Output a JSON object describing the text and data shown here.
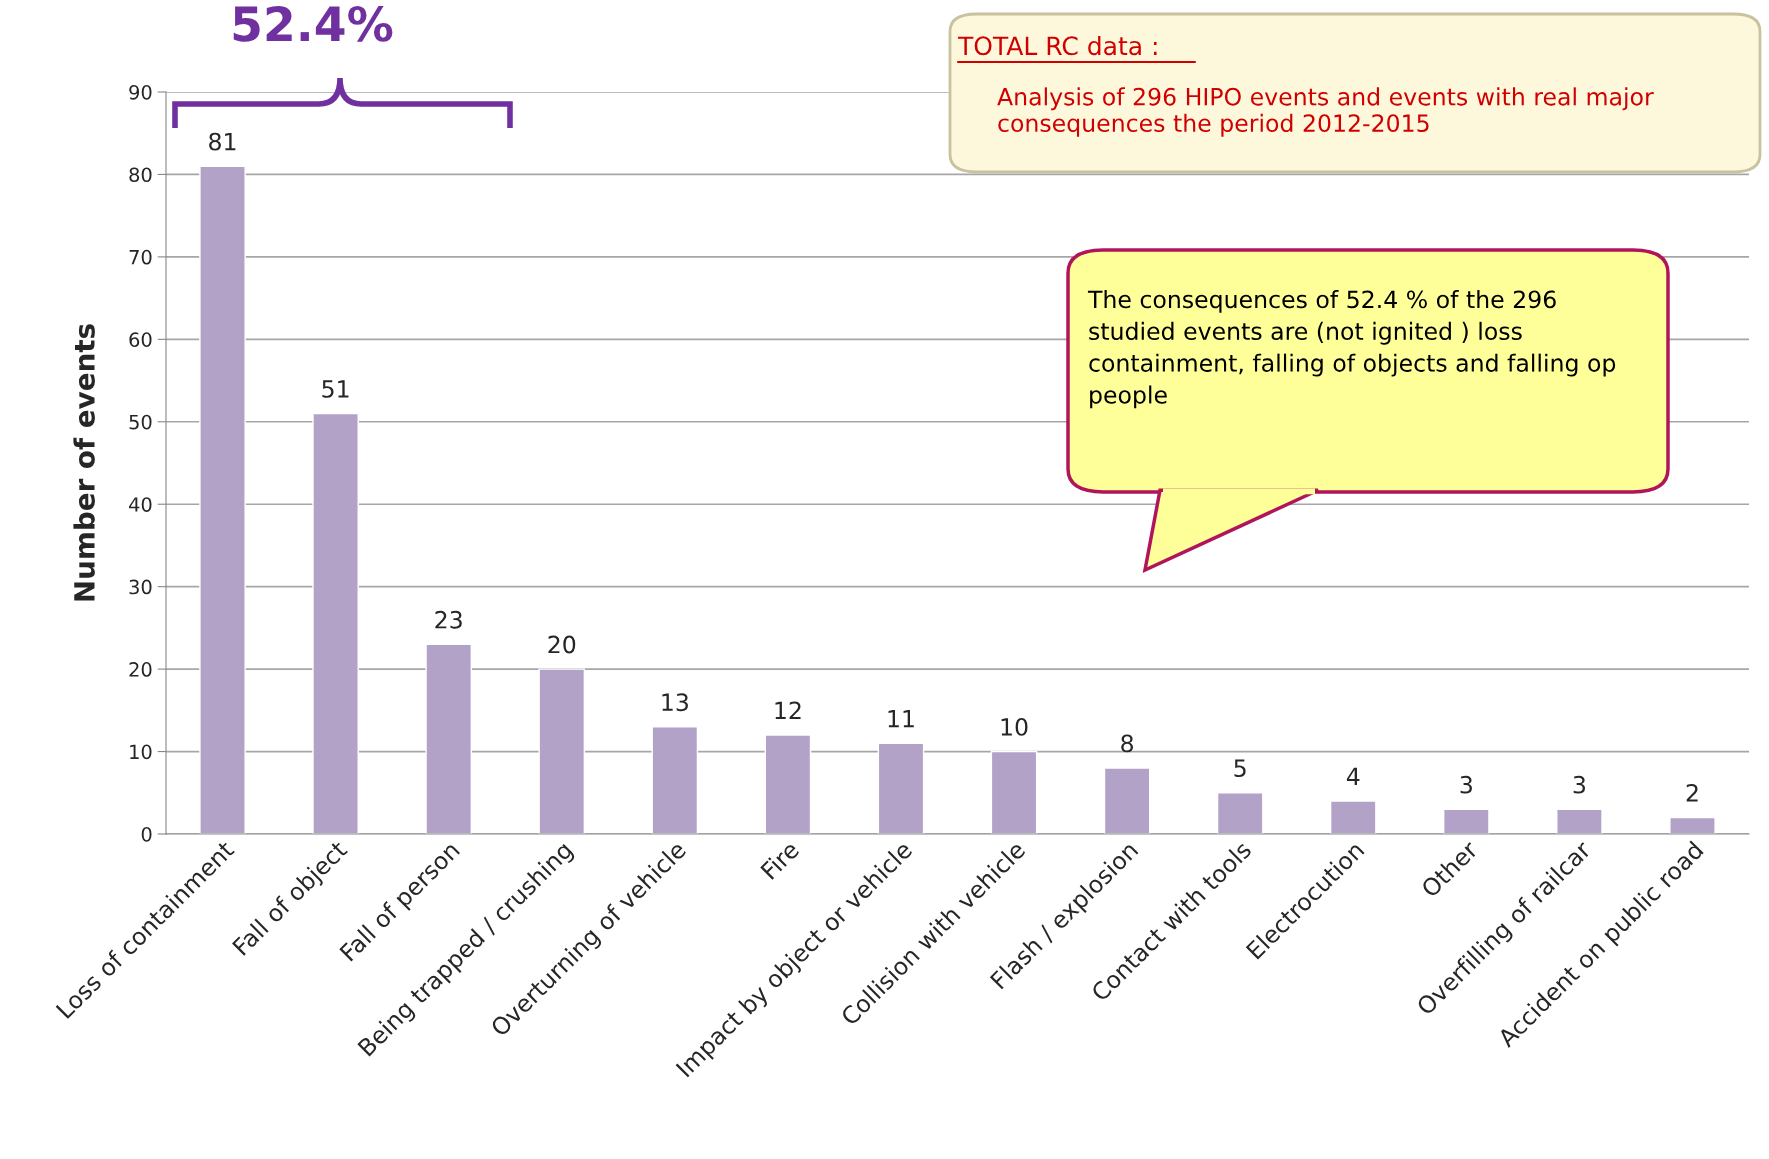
{
  "chart_data": {
    "type": "bar",
    "ylabel": "Number of events",
    "categories": [
      "Loss of containment",
      "Fall of object",
      "Fall of person",
      "Being trapped / crushing",
      "Overturning of vehicle",
      "Fire",
      "Impact by object or vehicle",
      "Collision with vehicle",
      "Flash / explosion",
      "Contact with tools",
      "Electrocution",
      "Other",
      "Overfilling of railcar",
      "Accident on public road"
    ],
    "values": [
      81,
      51,
      23,
      20,
      13,
      12,
      11,
      10,
      8,
      5,
      4,
      3,
      3,
      2
    ],
    "color": "#b3a2c7",
    "ylim": [
      0,
      90
    ],
    "yticks": [
      0,
      10,
      20,
      30,
      40,
      50,
      60,
      70,
      80,
      90
    ],
    "grid": "y",
    "data_labels": true,
    "legend": false,
    "annotations": [
      "52.4%",
      "TOTAL RC data :",
      "Analysis of 296 HIPO events and events with real major consequences the period 2012-2015",
      "The consequences of 52.4 % of the 296 studied events are (not ignited ) loss containment, falling of objects and falling op people"
    ]
  }
}
